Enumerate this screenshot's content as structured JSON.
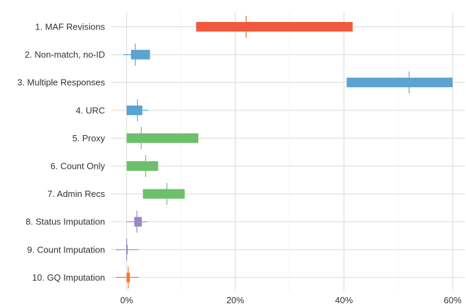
{
  "chart_data": {
    "type": "bar",
    "subtype": "floating-range-with-crosshair",
    "title": "",
    "xlabel": "",
    "ylabel": "",
    "xlim": [
      -0.03,
      0.625
    ],
    "x_ticks": [
      0,
      0.2,
      0.4,
      0.6
    ],
    "x_tick_labels": [
      "0%",
      "20%",
      "40%",
      "60%"
    ],
    "grid": true,
    "legend": "none",
    "categories": [
      "1. MAF Revisions",
      "2. Non-match, no-ID",
      "3. Multiple Responses",
      "4. URC",
      "5. Proxy",
      "6. Count Only",
      "7. Admin Recs",
      "8. Status Imputation",
      "9. Count Imputation",
      "10. GQ Imputation"
    ],
    "series": [
      {
        "low": [
          0.128,
          0.008,
          0.405,
          0.0,
          0.0,
          0.0,
          0.03,
          0.014,
          0.0,
          0.0
        ],
        "high": [
          0.416,
          0.043,
          0.6,
          0.029,
          0.132,
          0.058,
          0.107,
          0.028,
          0.002,
          0.006
        ],
        "center": [
          0.22,
          0.016,
          0.52,
          0.02,
          0.027,
          0.035,
          0.074,
          0.019,
          0.0,
          0.003
        ],
        "cross_low": [
          0.22,
          -0.006,
          0.52,
          0.0,
          0.027,
          0.035,
          0.074,
          0.0,
          -0.02,
          -0.02
        ],
        "cross_high": [
          0.22,
          0.034,
          0.52,
          0.04,
          0.027,
          0.035,
          0.074,
          0.038,
          0.022,
          0.022
        ],
        "colors": [
          "#F05A3C",
          "#5BA3D0",
          "#5BA3D0",
          "#5BA3D0",
          "#6CC06A",
          "#6CC06A",
          "#6CC06A",
          "#9A88C2",
          "#9A88C2",
          "#F47B2B"
        ]
      }
    ]
  }
}
